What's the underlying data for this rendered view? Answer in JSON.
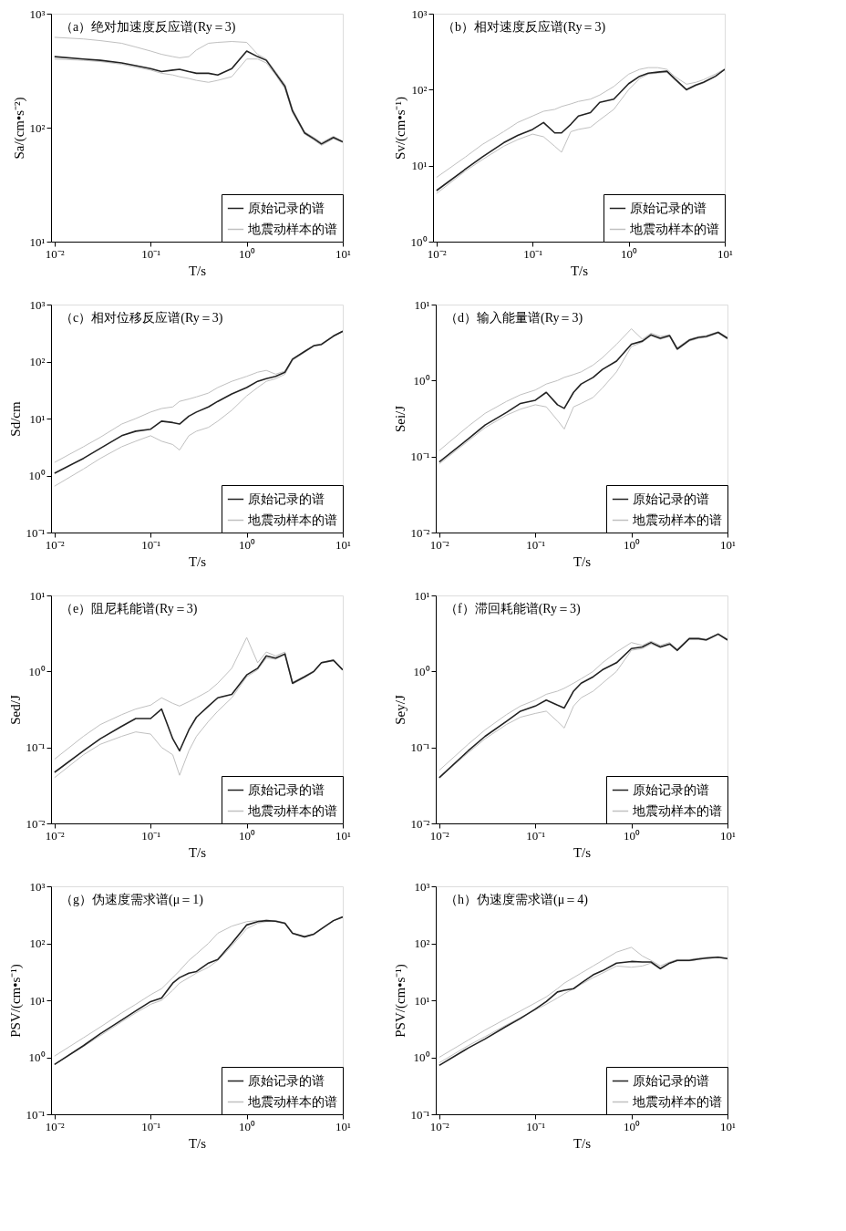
{
  "chart_data": [
    {
      "type": "line",
      "title": "（a）绝对加速度反应谱(Ry＝3)",
      "xlabel": "T/s",
      "ylabel": "Sa/(cm•s⁻²)",
      "log": "xy",
      "legend": "bottom right",
      "xlim": [
        0.0092,
        10
      ],
      "ylim": [
        10,
        1000
      ],
      "xticks": [
        {
          "value": 0.01,
          "label": "10⁻²"
        },
        {
          "value": 0.1,
          "label": "10⁻¹"
        },
        {
          "value": 1,
          "label": "10⁰"
        },
        {
          "value": 10,
          "label": "10¹"
        }
      ],
      "yticks": [
        {
          "value": 10,
          "label": "10¹"
        },
        {
          "value": 100,
          "label": "10²"
        },
        {
          "value": 1000,
          "label": "10³"
        }
      ],
      "x": [
        0.01,
        0.02,
        0.03,
        0.05,
        0.07,
        0.1,
        0.13,
        0.17,
        0.2,
        0.25,
        0.3,
        0.4,
        0.5,
        0.7,
        1,
        1.3,
        1.6,
        2,
        2.5,
        3,
        4,
        5,
        6,
        8,
        10
      ],
      "series": [
        {
          "name": "原始记录的谱",
          "color": "#222222",
          "values": [
            420,
            400,
            390,
            370,
            350,
            330,
            310,
            320,
            325,
            310,
            300,
            300,
            290,
            330,
            470,
            420,
            390,
            300,
            230,
            140,
            90,
            80,
            72,
            82,
            75
          ]
        },
        {
          "name": "地震动样本的谱",
          "color": "#c0c0c0",
          "values": [
            620,
            600,
            580,
            550,
            510,
            470,
            440,
            420,
            410,
            420,
            480,
            550,
            560,
            570,
            560,
            440,
            400,
            310,
            240,
            145,
            92,
            82,
            74,
            84,
            76
          ]
        },
        {
          "color": "#c0c0c0",
          "values": [
            400,
            390,
            380,
            360,
            340,
            320,
            300,
            290,
            280,
            270,
            260,
            250,
            260,
            280,
            400,
            400,
            370,
            290,
            220,
            135,
            88,
            78,
            70,
            80,
            74
          ]
        }
      ]
    },
    {
      "type": "line",
      "title": "（b）相对速度反应谱(Ry＝3)",
      "xlabel": "T/s",
      "ylabel": "Sv/(cm•s⁻¹)",
      "log": "xy",
      "legend": "bottom right",
      "xlim": [
        0.0092,
        10
      ],
      "ylim": [
        1,
        1000
      ],
      "xticks": [
        {
          "value": 0.01,
          "label": "10⁻²"
        },
        {
          "value": 0.1,
          "label": "10⁻¹"
        },
        {
          "value": 1,
          "label": "10⁰"
        },
        {
          "value": 10,
          "label": "10¹"
        }
      ],
      "yticks": [
        {
          "value": 1,
          "label": "10⁰"
        },
        {
          "value": 10,
          "label": "10¹"
        },
        {
          "value": 100,
          "label": "10²"
        },
        {
          "value": 1000,
          "label": "10³"
        }
      ],
      "x": [
        0.01,
        0.02,
        0.03,
        0.05,
        0.07,
        0.1,
        0.13,
        0.17,
        0.2,
        0.25,
        0.3,
        0.4,
        0.5,
        0.7,
        1,
        1.3,
        1.6,
        2,
        2.5,
        3,
        4,
        5,
        6,
        8,
        10
      ],
      "series": [
        {
          "name": "原始记录的谱",
          "color": "#222222",
          "values": [
            4.7,
            9,
            13,
            20,
            25,
            30,
            37,
            27,
            27,
            35,
            45,
            50,
            68,
            75,
            120,
            150,
            165,
            170,
            175,
            140,
            100,
            115,
            125,
            150,
            185
          ]
        },
        {
          "name": "地震动样本的谱",
          "color": "#c0c0c0",
          "values": [
            7,
            13,
            19,
            28,
            37,
            45,
            52,
            55,
            60,
            65,
            70,
            75,
            85,
            110,
            160,
            185,
            195,
            195,
            185,
            150,
            118,
            125,
            135,
            160,
            188
          ]
        },
        {
          "color": "#c0c0c0",
          "values": [
            4.3,
            8.5,
            12,
            18,
            22,
            26,
            24,
            18,
            15,
            28,
            30,
            32,
            40,
            55,
            100,
            140,
            160,
            165,
            170,
            135,
            98,
            112,
            122,
            148,
            183
          ]
        }
      ]
    },
    {
      "type": "line",
      "title": "（c）相对位移反应谱(Ry＝3)",
      "xlabel": "T/s",
      "ylabel": "Sd/cm",
      "log": "xy",
      "legend": "bottom right",
      "xlim": [
        0.0092,
        10
      ],
      "ylim": [
        0.1,
        1000
      ],
      "xticks": [
        {
          "value": 0.01,
          "label": "10⁻²"
        },
        {
          "value": 0.1,
          "label": "10⁻¹"
        },
        {
          "value": 1,
          "label": "10⁰"
        },
        {
          "value": 10,
          "label": "10¹"
        }
      ],
      "yticks": [
        {
          "value": 0.1,
          "label": "10⁻¹"
        },
        {
          "value": 1,
          "label": "10⁰"
        },
        {
          "value": 10,
          "label": "10¹"
        },
        {
          "value": 100,
          "label": "10²"
        },
        {
          "value": 1000,
          "label": "10³"
        }
      ],
      "x": [
        0.01,
        0.02,
        0.03,
        0.05,
        0.07,
        0.1,
        0.13,
        0.17,
        0.2,
        0.25,
        0.3,
        0.4,
        0.5,
        0.7,
        1,
        1.3,
        1.6,
        2,
        2.5,
        3,
        4,
        5,
        6,
        8,
        10
      ],
      "series": [
        {
          "name": "原始记录的谱",
          "color": "#222222",
          "values": [
            1.1,
            2,
            3,
            5,
            6,
            6.5,
            9,
            8.5,
            8,
            11,
            13,
            16,
            20,
            27,
            35,
            45,
            50,
            55,
            65,
            110,
            150,
            190,
            200,
            280,
            340
          ]
        },
        {
          "name": "地震动样本的谱",
          "color": "#c0c0c0",
          "values": [
            1.7,
            3.2,
            4.7,
            8,
            10,
            13,
            15,
            16,
            20,
            22,
            24,
            28,
            35,
            45,
            55,
            65,
            70,
            60,
            68,
            112,
            152,
            192,
            205,
            285,
            345
          ]
        },
        {
          "color": "#c0c0c0",
          "values": [
            0.65,
            1.3,
            2,
            3.2,
            4,
            5,
            4,
            3.5,
            2.8,
            5,
            6,
            7,
            9,
            14,
            25,
            35,
            45,
            50,
            60,
            105,
            145,
            185,
            195,
            275,
            335
          ]
        }
      ]
    },
    {
      "type": "line",
      "title": "（d）输入能量谱(Ry＝3)",
      "xlabel": "T/s",
      "ylabel": "Sei/J",
      "log": "xy",
      "legend": "bottom right",
      "xlim": [
        0.0092,
        10
      ],
      "ylim": [
        0.01,
        10
      ],
      "xticks": [
        {
          "value": 0.01,
          "label": "10⁻²"
        },
        {
          "value": 0.1,
          "label": "10⁻¹"
        },
        {
          "value": 1,
          "label": "10⁰"
        },
        {
          "value": 10,
          "label": "10¹"
        }
      ],
      "yticks": [
        {
          "value": 0.01,
          "label": "10⁻²"
        },
        {
          "value": 0.1,
          "label": "10⁻¹"
        },
        {
          "value": 1,
          "label": "10⁰"
        },
        {
          "value": 10,
          "label": "10¹"
        }
      ],
      "x": [
        0.01,
        0.02,
        0.03,
        0.05,
        0.07,
        0.1,
        0.13,
        0.17,
        0.2,
        0.25,
        0.3,
        0.4,
        0.5,
        0.7,
        1,
        1.3,
        1.6,
        2,
        2.5,
        3,
        4,
        5,
        6,
        8,
        10
      ],
      "series": [
        {
          "name": "原始记录的谱",
          "color": "#222222",
          "values": [
            0.085,
            0.17,
            0.26,
            0.38,
            0.5,
            0.55,
            0.7,
            0.48,
            0.43,
            0.7,
            0.9,
            1.1,
            1.4,
            1.8,
            3,
            3.3,
            4,
            3.6,
            3.9,
            2.6,
            3.4,
            3.7,
            3.8,
            4.3,
            3.6
          ]
        },
        {
          "name": "地震动样本的谱",
          "color": "#c0c0c0",
          "values": [
            0.12,
            0.25,
            0.37,
            0.53,
            0.65,
            0.75,
            0.9,
            1,
            1.1,
            1.2,
            1.3,
            1.6,
            2,
            3,
            4.8,
            3.5,
            4.2,
            3.8,
            4,
            2.7,
            3.5,
            3.8,
            3.9,
            4.4,
            3.7
          ]
        },
        {
          "color": "#c0c0c0",
          "values": [
            0.08,
            0.16,
            0.24,
            0.35,
            0.42,
            0.48,
            0.45,
            0.3,
            0.23,
            0.45,
            0.5,
            0.6,
            0.8,
            1.3,
            2.8,
            3.2,
            3.9,
            3.5,
            3.8,
            2.55,
            3.3,
            3.6,
            3.7,
            4.2,
            3.5
          ]
        }
      ]
    },
    {
      "type": "line",
      "title": "（e）阻尼耗能谱(Ry＝3)",
      "xlabel": "T/s",
      "ylabel": "Sed/J",
      "log": "xy",
      "legend": "bottom right",
      "xlim": [
        0.0092,
        10
      ],
      "ylim": [
        0.01,
        10
      ],
      "xticks": [
        {
          "value": 0.01,
          "label": "10⁻²"
        },
        {
          "value": 0.1,
          "label": "10⁻¹"
        },
        {
          "value": 1,
          "label": "10⁰"
        },
        {
          "value": 10,
          "label": "10¹"
        }
      ],
      "yticks": [
        {
          "value": 0.01,
          "label": "10⁻²"
        },
        {
          "value": 0.1,
          "label": "10⁻¹"
        },
        {
          "value": 1,
          "label": "10⁰"
        },
        {
          "value": 10,
          "label": "10¹"
        }
      ],
      "x": [
        0.01,
        0.02,
        0.03,
        0.05,
        0.07,
        0.1,
        0.13,
        0.17,
        0.2,
        0.25,
        0.3,
        0.4,
        0.5,
        0.7,
        1,
        1.3,
        1.6,
        2,
        2.5,
        3,
        4,
        5,
        6,
        8,
        10
      ],
      "series": [
        {
          "name": "原始记录的谱",
          "color": "#222222",
          "values": [
            0.047,
            0.09,
            0.13,
            0.19,
            0.24,
            0.24,
            0.32,
            0.13,
            0.09,
            0.17,
            0.25,
            0.35,
            0.45,
            0.5,
            0.9,
            1.1,
            1.6,
            1.5,
            1.7,
            0.7,
            0.85,
            1,
            1.3,
            1.4,
            1.05
          ]
        },
        {
          "name": "地震动样本的谱",
          "color": "#c0c0c0",
          "values": [
            0.07,
            0.14,
            0.2,
            0.27,
            0.32,
            0.36,
            0.45,
            0.38,
            0.35,
            0.4,
            0.45,
            0.55,
            0.7,
            1.1,
            2.8,
            1.3,
            1.8,
            1.6,
            1.8,
            0.72,
            0.87,
            1.02,
            1.32,
            1.42,
            1.07
          ]
        },
        {
          "color": "#c0c0c0",
          "values": [
            0.04,
            0.08,
            0.11,
            0.14,
            0.16,
            0.15,
            0.1,
            0.08,
            0.043,
            0.09,
            0.14,
            0.22,
            0.3,
            0.45,
            0.85,
            1.05,
            1.5,
            1.45,
            1.65,
            0.68,
            0.83,
            0.98,
            1.28,
            1.38,
            1.03
          ]
        }
      ]
    },
    {
      "type": "line",
      "title": "（f）滞回耗能谱(Ry＝3)",
      "xlabel": "T/s",
      "ylabel": "Sey/J",
      "log": "xy",
      "legend": "bottom right",
      "xlim": [
        0.0092,
        10
      ],
      "ylim": [
        0.01,
        10
      ],
      "xticks": [
        {
          "value": 0.01,
          "label": "10⁻²"
        },
        {
          "value": 0.1,
          "label": "10⁻¹"
        },
        {
          "value": 1,
          "label": "10⁰"
        },
        {
          "value": 10,
          "label": "10¹"
        }
      ],
      "yticks": [
        {
          "value": 0.01,
          "label": "10⁻²"
        },
        {
          "value": 0.1,
          "label": "10⁻¹"
        },
        {
          "value": 1,
          "label": "10⁰"
        },
        {
          "value": 10,
          "label": "10¹"
        }
      ],
      "x": [
        0.01,
        0.02,
        0.03,
        0.05,
        0.07,
        0.1,
        0.13,
        0.17,
        0.2,
        0.25,
        0.3,
        0.4,
        0.5,
        0.7,
        1,
        1.3,
        1.6,
        2,
        2.5,
        3,
        4,
        5,
        6,
        8,
        10
      ],
      "series": [
        {
          "name": "原始记录的谱",
          "color": "#222222",
          "values": [
            0.04,
            0.09,
            0.14,
            0.22,
            0.3,
            0.35,
            0.42,
            0.36,
            0.33,
            0.55,
            0.7,
            0.85,
            1.05,
            1.3,
            2,
            2.1,
            2.4,
            2.1,
            2.3,
            1.9,
            2.7,
            2.7,
            2.6,
            3.1,
            2.6
          ]
        },
        {
          "name": "地震动样本的谱",
          "color": "#c0c0c0",
          "values": [
            0.05,
            0.11,
            0.17,
            0.27,
            0.35,
            0.42,
            0.5,
            0.55,
            0.6,
            0.7,
            0.8,
            1,
            1.3,
            1.8,
            2.4,
            2.2,
            2.5,
            2.2,
            2.4,
            1.95,
            2.75,
            2.75,
            2.65,
            3.15,
            2.65
          ]
        },
        {
          "color": "#c0c0c0",
          "values": [
            0.04,
            0.085,
            0.13,
            0.2,
            0.25,
            0.28,
            0.3,
            0.22,
            0.18,
            0.35,
            0.45,
            0.55,
            0.7,
            1,
            1.9,
            2,
            2.3,
            2.05,
            2.25,
            1.85,
            2.65,
            2.65,
            2.55,
            3.05,
            2.55
          ]
        }
      ]
    },
    {
      "type": "line",
      "title": "（g）伪速度需求谱(μ＝1)",
      "xlabel": "T/s",
      "ylabel": "PSV/(cm•s⁻¹)",
      "log": "xy",
      "legend": "bottom right",
      "xlim": [
        0.0092,
        10
      ],
      "ylim": [
        0.1,
        1000
      ],
      "xticks": [
        {
          "value": 0.01,
          "label": "10⁻²"
        },
        {
          "value": 0.1,
          "label": "10⁻¹"
        },
        {
          "value": 1,
          "label": "10⁰"
        },
        {
          "value": 10,
          "label": "10¹"
        }
      ],
      "yticks": [
        {
          "value": 0.1,
          "label": "10⁻¹"
        },
        {
          "value": 1,
          "label": "10⁰"
        },
        {
          "value": 10,
          "label": "10¹"
        },
        {
          "value": 100,
          "label": "10²"
        },
        {
          "value": 1000,
          "label": "10³"
        }
      ],
      "x": [
        0.01,
        0.02,
        0.03,
        0.05,
        0.07,
        0.1,
        0.13,
        0.17,
        0.2,
        0.25,
        0.3,
        0.4,
        0.5,
        0.7,
        1,
        1.3,
        1.6,
        2,
        2.5,
        3,
        4,
        5,
        6,
        8,
        10
      ],
      "series": [
        {
          "name": "原始记录的谱",
          "color": "#222222",
          "values": [
            0.75,
            1.6,
            2.6,
            4.5,
            6.5,
            9.5,
            11,
            20,
            25,
            30,
            32,
            45,
            52,
            100,
            210,
            240,
            250,
            245,
            225,
            150,
            130,
            145,
            180,
            250,
            290
          ]
        },
        {
          "name": "地震动样本的谱",
          "color": "#c0c0c0",
          "values": [
            1.05,
            2.2,
            3.4,
            6,
            8.5,
            12.5,
            16,
            25,
            33,
            50,
            65,
            100,
            150,
            200,
            240,
            250,
            255,
            250,
            230,
            152,
            132,
            147,
            182,
            252,
            292
          ]
        },
        {
          "color": "#c0c0c0",
          "values": [
            0.75,
            1.55,
            2.4,
            4.2,
            6,
            8.5,
            10,
            15,
            20,
            25,
            30,
            38,
            50,
            90,
            180,
            225,
            240,
            240,
            220,
            148,
            128,
            143,
            178,
            248,
            288
          ]
        }
      ]
    },
    {
      "type": "line",
      "title": "（h）伪速度需求谱(μ＝4)",
      "xlabel": "T/s",
      "ylabel": "PSV/(cm•s⁻¹)",
      "log": "xy",
      "legend": "bottom right",
      "xlim": [
        0.0092,
        10
      ],
      "ylim": [
        0.1,
        1000
      ],
      "xticks": [
        {
          "value": 0.01,
          "label": "10⁻²"
        },
        {
          "value": 0.1,
          "label": "10⁻¹"
        },
        {
          "value": 1,
          "label": "10⁰"
        },
        {
          "value": 10,
          "label": "10¹"
        }
      ],
      "yticks": [
        {
          "value": 0.1,
          "label": "10⁻¹"
        },
        {
          "value": 1,
          "label": "10⁰"
        },
        {
          "value": 10,
          "label": "10¹"
        },
        {
          "value": 100,
          "label": "10²"
        },
        {
          "value": 1000,
          "label": "10³"
        }
      ],
      "x": [
        0.01,
        0.02,
        0.03,
        0.05,
        0.07,
        0.1,
        0.13,
        0.17,
        0.2,
        0.25,
        0.3,
        0.4,
        0.5,
        0.7,
        1,
        1.3,
        1.6,
        2,
        2.5,
        3,
        4,
        5,
        6,
        8,
        10
      ],
      "series": [
        {
          "name": "原始记录的谱",
          "color": "#222222",
          "values": [
            0.72,
            1.45,
            2.1,
            3.5,
            4.8,
            7,
            9.5,
            14,
            15,
            16,
            20,
            28,
            33,
            45,
            48,
            47,
            47,
            36,
            45,
            50,
            50,
            53,
            55,
            57,
            54
          ]
        },
        {
          "name": "地震动样本的谱",
          "color": "#c0c0c0",
          "values": [
            1,
            2,
            3,
            4.8,
            6.5,
            9,
            11.5,
            16,
            20,
            25,
            30,
            40,
            50,
            70,
            85,
            60,
            50,
            40,
            47,
            52,
            52,
            55,
            57,
            58,
            55
          ]
        },
        {
          "color": "#c0c0c0",
          "values": [
            0.8,
            1.6,
            2.3,
            3.7,
            5,
            6.8,
            8.5,
            11,
            13,
            16,
            19,
            25,
            30,
            40,
            38,
            40,
            45,
            35,
            44,
            49,
            49,
            52,
            54,
            56,
            53
          ]
        }
      ]
    }
  ]
}
